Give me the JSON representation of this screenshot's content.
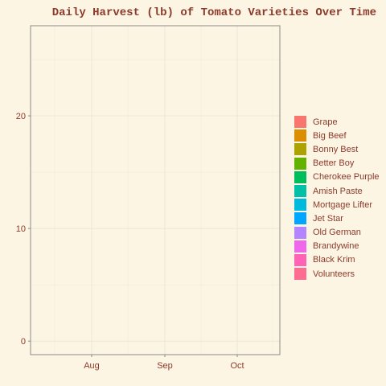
{
  "chart_data": {
    "type": "area",
    "title": "Daily Harvest (lb) of Tomato Varieties Over Time",
    "xlabel": "",
    "ylabel": "",
    "x_ticks": [
      "Aug",
      "Sep",
      "Oct"
    ],
    "y_ticks": [
      0,
      10,
      20
    ],
    "ylim": [
      -1.2,
      28
    ],
    "grid": true,
    "legend_position": "right",
    "series": [
      {
        "name": "Grape",
        "color": "#F8766D",
        "values": []
      },
      {
        "name": "Big Beef",
        "color": "#DB8E00",
        "values": []
      },
      {
        "name": "Bonny Best",
        "color": "#AEA200",
        "values": []
      },
      {
        "name": "Better Boy",
        "color": "#64B200",
        "values": []
      },
      {
        "name": "Cherokee Purple",
        "color": "#00BD5C",
        "values": []
      },
      {
        "name": "Amish Paste",
        "color": "#00C1A7",
        "values": []
      },
      {
        "name": "Mortgage Lifter",
        "color": "#00BADE",
        "values": []
      },
      {
        "name": "Jet Star",
        "color": "#00A6FF",
        "values": []
      },
      {
        "name": "Old German",
        "color": "#B385FF",
        "values": []
      },
      {
        "name": "Brandywine",
        "color": "#EF67EB",
        "values": []
      },
      {
        "name": "Black Krim",
        "color": "#FF63B6",
        "values": []
      },
      {
        "name": "Volunteers",
        "color": "#FF6C91",
        "values": []
      }
    ]
  }
}
